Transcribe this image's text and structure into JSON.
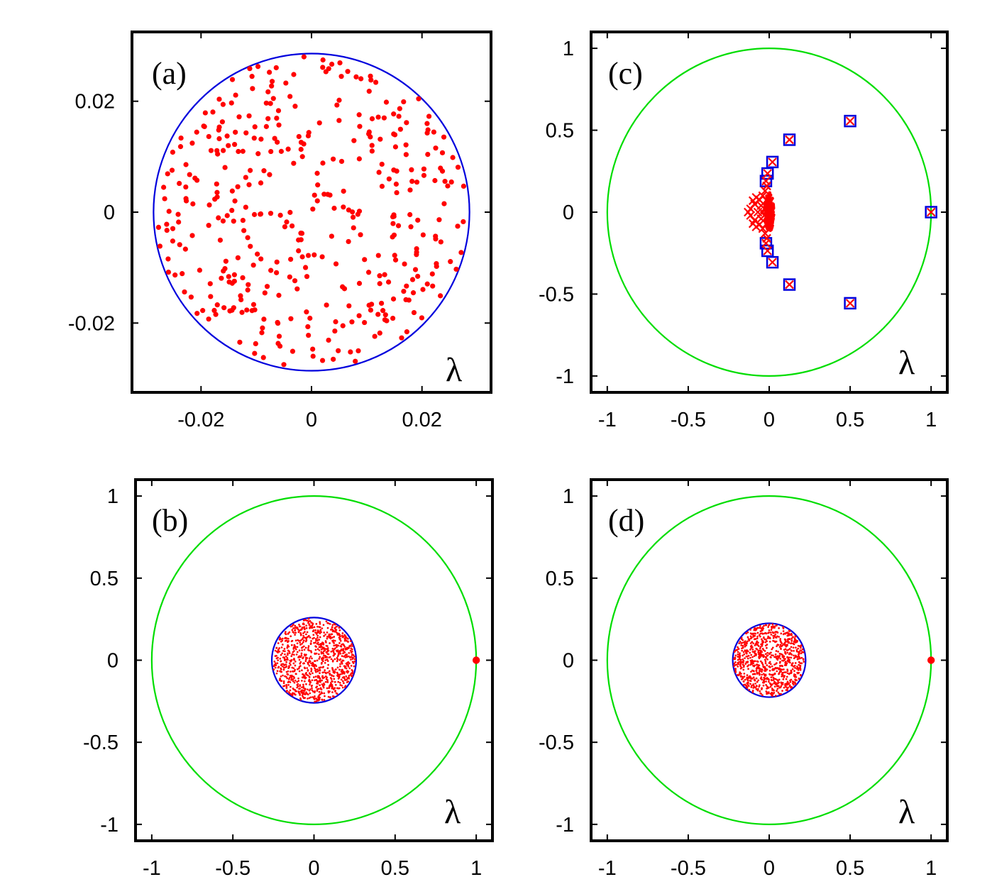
{
  "colors": {
    "points": "#ff0000",
    "blue_circle": "#0000dd",
    "green_circle": "#00dd00",
    "square_marker": "#0000dd",
    "frame": "#000000"
  },
  "chart_data": [
    {
      "id": "a",
      "type": "scatter",
      "panel_label": "(a)",
      "corner_label": "λ",
      "xlim": [
        -0.0325,
        0.0325
      ],
      "ylim": [
        -0.0325,
        0.0325
      ],
      "xticks": [
        -0.02,
        0,
        0.02
      ],
      "xtick_labels": [
        "-0.02",
        "0",
        "0.02"
      ],
      "yticks": [
        -0.02,
        0,
        0.02
      ],
      "ytick_labels": [
        "-0.02",
        "0",
        "0.02"
      ],
      "circles": [
        {
          "name": "spectral-bulk-circle",
          "center": [
            0,
            0
          ],
          "radius": 0.0286,
          "color": "blue"
        }
      ],
      "series": [
        {
          "name": "eigenvalues",
          "marker": "dot",
          "color": "red",
          "distribution": "uniform-disk",
          "count": 400,
          "disk_radius": 0.0282,
          "seed": 11
        }
      ]
    },
    {
      "id": "b",
      "type": "scatter",
      "panel_label": "(b)",
      "corner_label": "λ",
      "xlim": [
        -1.1,
        1.1
      ],
      "ylim": [
        -1.1,
        1.1
      ],
      "xticks": [
        -1,
        -0.5,
        0,
        0.5,
        1
      ],
      "xtick_labels": [
        "-1",
        "-0.5",
        "0",
        "0.5",
        "1"
      ],
      "yticks": [
        -1,
        -0.5,
        0,
        0.5,
        1
      ],
      "ytick_labels": [
        "-1",
        "-0.5",
        "0",
        "0.5",
        "1"
      ],
      "circles": [
        {
          "name": "unit-circle",
          "center": [
            0,
            0
          ],
          "radius": 1.0,
          "color": "green"
        },
        {
          "name": "spectral-bulk-circle",
          "center": [
            0,
            0
          ],
          "radius": 0.26,
          "color": "blue"
        }
      ],
      "series": [
        {
          "name": "eigenvalues",
          "marker": "small-dot",
          "color": "red",
          "distribution": "uniform-disk",
          "count": 1000,
          "disk_radius": 0.255,
          "seed": 23
        },
        {
          "name": "leading-eigenvalue",
          "marker": "dot",
          "color": "red",
          "points": [
            [
              1.0,
              0.0
            ]
          ]
        }
      ]
    },
    {
      "id": "c",
      "type": "scatter",
      "panel_label": "(c)",
      "corner_label": "λ",
      "xlim": [
        -1.1,
        1.1
      ],
      "ylim": [
        -1.1,
        1.1
      ],
      "xticks": [
        -1,
        -0.5,
        0,
        0.5,
        1
      ],
      "xtick_labels": [
        "-1",
        "-0.5",
        "0",
        "0.5",
        "1"
      ],
      "yticks": [
        -1,
        -0.5,
        0,
        0.5,
        1
      ],
      "ytick_labels": [
        "-1",
        "-0.5",
        "0",
        "0.5",
        "1"
      ],
      "circles": [
        {
          "name": "unit-circle",
          "center": [
            0,
            0
          ],
          "radius": 1.0,
          "color": "green"
        }
      ],
      "series": [
        {
          "name": "squares",
          "marker": "square",
          "color": "blue",
          "points": [
            [
              1.0,
              0.0
            ],
            [
              0.5,
              0.556
            ],
            [
              0.5,
              -0.556
            ],
            [
              0.125,
              0.442
            ],
            [
              0.125,
              -0.442
            ],
            [
              0.02,
              0.306
            ],
            [
              0.02,
              -0.306
            ],
            [
              -0.01,
              0.236
            ],
            [
              -0.01,
              -0.236
            ],
            [
              -0.02,
              0.19
            ],
            [
              -0.02,
              -0.19
            ]
          ]
        },
        {
          "name": "crosses",
          "marker": "cross",
          "color": "red",
          "points": [
            [
              1.0,
              0.0
            ],
            [
              0.5,
              0.556
            ],
            [
              0.5,
              -0.556
            ],
            [
              0.125,
              0.442
            ],
            [
              0.125,
              -0.442
            ],
            [
              0.02,
              0.306
            ],
            [
              0.02,
              -0.306
            ],
            [
              -0.01,
              0.236
            ],
            [
              -0.01,
              -0.236
            ],
            [
              -0.02,
              0.19
            ],
            [
              -0.02,
              -0.19
            ],
            [
              -0.015,
              0.16
            ],
            [
              -0.015,
              -0.16
            ],
            [
              -0.025,
              0.13
            ],
            [
              -0.025,
              -0.13
            ],
            [
              -0.04,
              0.1
            ],
            [
              -0.04,
              -0.1
            ],
            [
              -0.06,
              0.075
            ],
            [
              -0.06,
              -0.075
            ],
            [
              -0.09,
              0.05
            ],
            [
              -0.09,
              -0.05
            ],
            [
              -0.115,
              0.02
            ],
            [
              -0.115,
              -0.02
            ],
            [
              -0.13,
              0.0
            ],
            [
              -0.08,
              0.09
            ],
            [
              -0.08,
              -0.09
            ],
            [
              -0.1,
              0.07
            ],
            [
              -0.1,
              -0.07
            ],
            [
              -0.05,
              0.04
            ],
            [
              -0.05,
              -0.04
            ],
            [
              -0.03,
              0.02
            ],
            [
              -0.03,
              -0.02
            ],
            [
              -0.07,
              0.0
            ],
            [
              -0.04,
              0.0
            ],
            [
              -0.015,
              0.07
            ],
            [
              -0.015,
              -0.07
            ]
          ]
        },
        {
          "name": "central-cluster",
          "marker": "dense-cluster",
          "color": "red",
          "center": [
            0,
            0
          ],
          "radii": [
            0.028,
            0.12
          ]
        }
      ]
    },
    {
      "id": "d",
      "type": "scatter",
      "panel_label": "(d)",
      "corner_label": "λ",
      "xlim": [
        -1.1,
        1.1
      ],
      "ylim": [
        -1.1,
        1.1
      ],
      "xticks": [
        -1,
        -0.5,
        0,
        0.5,
        1
      ],
      "xtick_labels": [
        "-1",
        "-0.5",
        "0",
        "0.5",
        "1"
      ],
      "yticks": [
        -1,
        -0.5,
        0,
        0.5,
        1
      ],
      "ytick_labels": [
        "-1",
        "-0.5",
        "0",
        "0.5",
        "1"
      ],
      "circles": [
        {
          "name": "unit-circle",
          "center": [
            0,
            0
          ],
          "radius": 1.0,
          "color": "green"
        },
        {
          "name": "spectral-bulk-circle",
          "center": [
            0,
            0
          ],
          "radius": 0.225,
          "color": "blue"
        }
      ],
      "series": [
        {
          "name": "eigenvalues",
          "marker": "small-dot",
          "color": "red",
          "distribution": "uniform-disk",
          "count": 900,
          "disk_radius": 0.22,
          "seed": 37
        },
        {
          "name": "leading-eigenvalue",
          "marker": "dot",
          "color": "red",
          "points": [
            [
              1.0,
              0.0
            ]
          ]
        }
      ]
    }
  ]
}
